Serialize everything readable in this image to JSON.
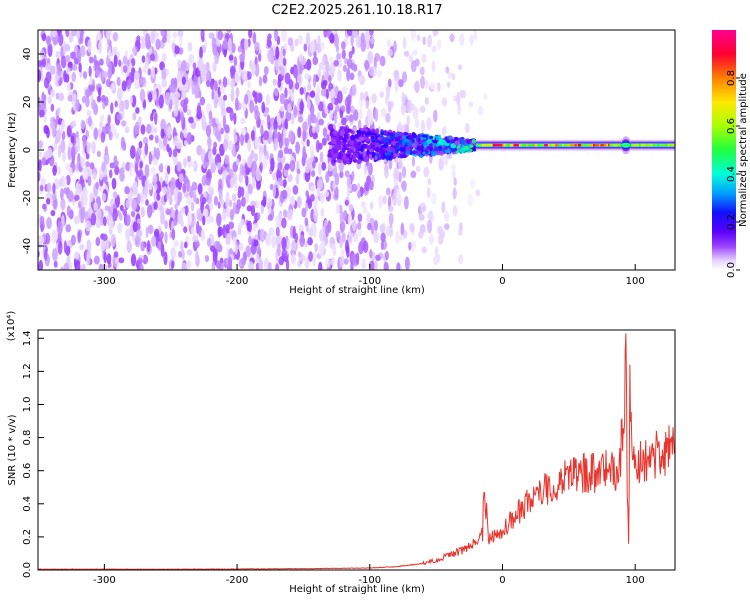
{
  "title": "C2E2.2025.261.10.18.R17",
  "chart_data": [
    {
      "type": "heatmap",
      "xlabel": "Height of straight line (km)",
      "ylabel": "Frequency (Hz)",
      "xlim": [
        -350,
        130
      ],
      "ylim": [
        -50,
        50
      ],
      "xticks": [
        -300,
        -200,
        -100,
        0,
        100
      ],
      "yticks": [
        -40,
        -20,
        0,
        20,
        40
      ],
      "colorbar": {
        "label": "Normalized spectral amplitude",
        "range": [
          0.0,
          1.0
        ],
        "ticks": [
          "0.0",
          "0.2",
          "0.4",
          "0.6",
          "0.8"
        ],
        "colormap": [
          "#ffffff",
          "#e0c8ff",
          "#9a40ff",
          "#6a00ff",
          "#1e00ff",
          "#00a8ff",
          "#00ffd0",
          "#30ff30",
          "#c0ff00",
          "#ffe000",
          "#ff8000",
          "#ff0030",
          "#ff0090"
        ]
      },
      "features": {
        "broadband_noise_x_range": [
          -350,
          -50
        ],
        "dense_noise_end_x": -130,
        "transition_x_range": [
          -130,
          -20
        ],
        "carrier_line_x_range": [
          -20,
          130
        ],
        "carrier_frequency_hz": 2,
        "carrier_peak_amplitude": 1.0,
        "disturbance_x": 93
      },
      "grid": false
    },
    {
      "type": "line",
      "xlabel": "Height of straight line (km)",
      "ylabel": "SNR (10 * v/v)",
      "y_multiplier": "(x10⁴)",
      "xlim": [
        -350,
        130
      ],
      "ylim": [
        0,
        1.45
      ],
      "xticks": [
        -300,
        -200,
        -100,
        0,
        100
      ],
      "yticks": [
        "0.0",
        "0.2",
        "0.4",
        "0.6",
        "0.8",
        "1.0",
        "1.2",
        "1.4"
      ],
      "series_color": "#e8342c",
      "series": [
        {
          "x": [
            -350,
            -300,
            -250,
            -200,
            -150,
            -100,
            -80,
            -60,
            -50,
            -40,
            -30,
            -20,
            -15,
            -14,
            -10,
            0,
            10,
            20,
            30,
            40,
            50,
            60,
            70,
            80,
            85,
            88,
            90,
            92,
            93,
            94,
            95,
            96,
            98,
            100,
            110,
            120,
            130
          ],
          "values": [
            0.005,
            0.005,
            0.005,
            0.006,
            0.008,
            0.012,
            0.02,
            0.04,
            0.06,
            0.09,
            0.12,
            0.17,
            0.22,
            0.49,
            0.18,
            0.24,
            0.33,
            0.42,
            0.48,
            0.53,
            0.56,
            0.58,
            0.59,
            0.6,
            0.6,
            0.62,
            0.8,
            0.95,
            1.44,
            0.5,
            0.15,
            1.15,
            0.62,
            0.63,
            0.67,
            0.71,
            0.74
          ]
        }
      ],
      "grid": false
    }
  ]
}
